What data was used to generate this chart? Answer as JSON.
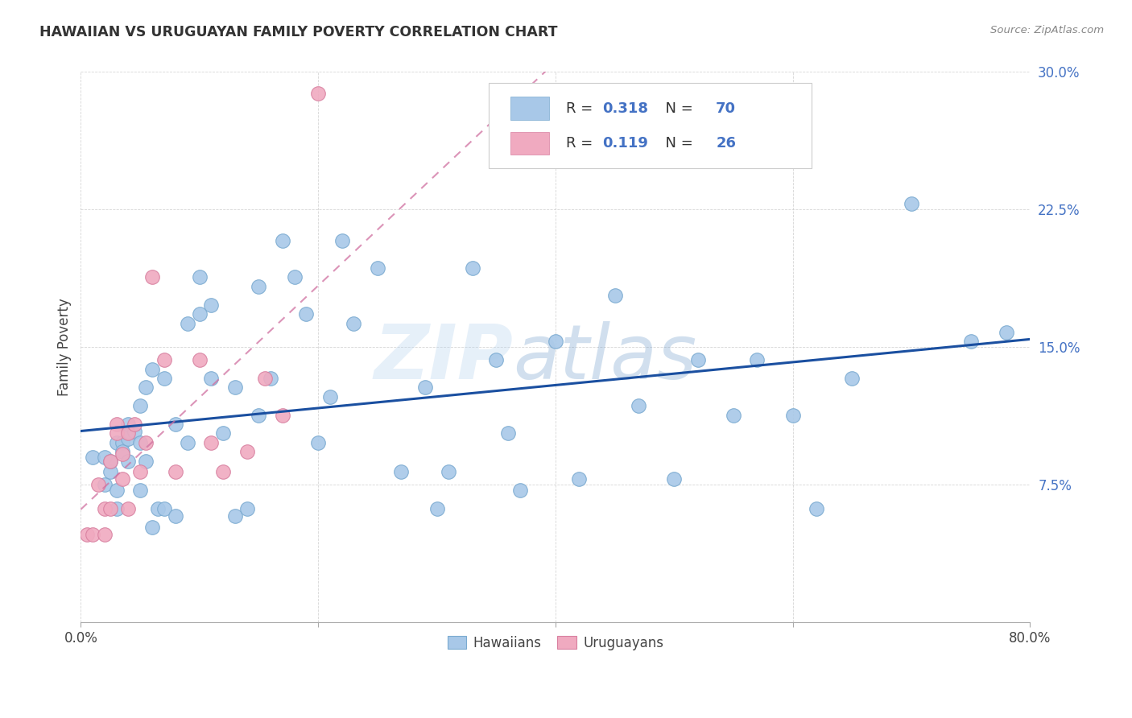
{
  "title": "HAWAIIAN VS URUGUAYAN FAMILY POVERTY CORRELATION CHART",
  "source": "Source: ZipAtlas.com",
  "ylabel": "Family Poverty",
  "xlim": [
    0,
    0.8
  ],
  "ylim": [
    0,
    0.3
  ],
  "hawaiian_color": "#a8c8e8",
  "hawaiian_edge_color": "#7aaad0",
  "uruguayan_color": "#f0aac0",
  "uruguayan_edge_color": "#d880a0",
  "hawaiian_line_color": "#1a4fa0",
  "uruguayan_line_color": "#d070a0",
  "R_hawaiian": 0.318,
  "N_hawaiian": 70,
  "R_uruguayan": 0.119,
  "N_uruguayan": 26,
  "watermark_zip": "ZIP",
  "watermark_atlas": "atlas",
  "hawaiian_x": [
    0.01,
    0.02,
    0.02,
    0.025,
    0.025,
    0.03,
    0.03,
    0.03,
    0.035,
    0.035,
    0.04,
    0.04,
    0.04,
    0.04,
    0.045,
    0.05,
    0.05,
    0.05,
    0.055,
    0.055,
    0.06,
    0.06,
    0.065,
    0.07,
    0.07,
    0.08,
    0.08,
    0.09,
    0.09,
    0.1,
    0.1,
    0.11,
    0.11,
    0.12,
    0.13,
    0.13,
    0.14,
    0.15,
    0.15,
    0.16,
    0.17,
    0.18,
    0.19,
    0.2,
    0.21,
    0.22,
    0.23,
    0.25,
    0.27,
    0.29,
    0.3,
    0.31,
    0.33,
    0.35,
    0.36,
    0.37,
    0.4,
    0.42,
    0.45,
    0.47,
    0.5,
    0.52,
    0.55,
    0.57,
    0.6,
    0.62,
    0.65,
    0.7,
    0.75,
    0.78
  ],
  "hawaiian_y": [
    0.09,
    0.09,
    0.075,
    0.082,
    0.088,
    0.062,
    0.098,
    0.072,
    0.098,
    0.093,
    0.1,
    0.104,
    0.088,
    0.108,
    0.104,
    0.118,
    0.098,
    0.072,
    0.128,
    0.088,
    0.052,
    0.138,
    0.062,
    0.133,
    0.062,
    0.108,
    0.058,
    0.163,
    0.098,
    0.188,
    0.168,
    0.173,
    0.133,
    0.103,
    0.058,
    0.128,
    0.062,
    0.113,
    0.183,
    0.133,
    0.208,
    0.188,
    0.168,
    0.098,
    0.123,
    0.208,
    0.163,
    0.193,
    0.082,
    0.128,
    0.062,
    0.082,
    0.193,
    0.143,
    0.103,
    0.072,
    0.153,
    0.078,
    0.178,
    0.118,
    0.078,
    0.143,
    0.113,
    0.143,
    0.113,
    0.062,
    0.133,
    0.228,
    0.153,
    0.158
  ],
  "uruguayan_x": [
    0.005,
    0.01,
    0.015,
    0.02,
    0.02,
    0.025,
    0.025,
    0.03,
    0.03,
    0.035,
    0.035,
    0.04,
    0.04,
    0.045,
    0.05,
    0.055,
    0.06,
    0.07,
    0.08,
    0.1,
    0.11,
    0.12,
    0.14,
    0.155,
    0.17,
    0.2
  ],
  "uruguayan_y": [
    0.048,
    0.048,
    0.075,
    0.062,
    0.048,
    0.062,
    0.088,
    0.108,
    0.103,
    0.092,
    0.078,
    0.062,
    0.103,
    0.108,
    0.082,
    0.098,
    0.188,
    0.143,
    0.082,
    0.143,
    0.098,
    0.082,
    0.093,
    0.133,
    0.113,
    0.288
  ]
}
